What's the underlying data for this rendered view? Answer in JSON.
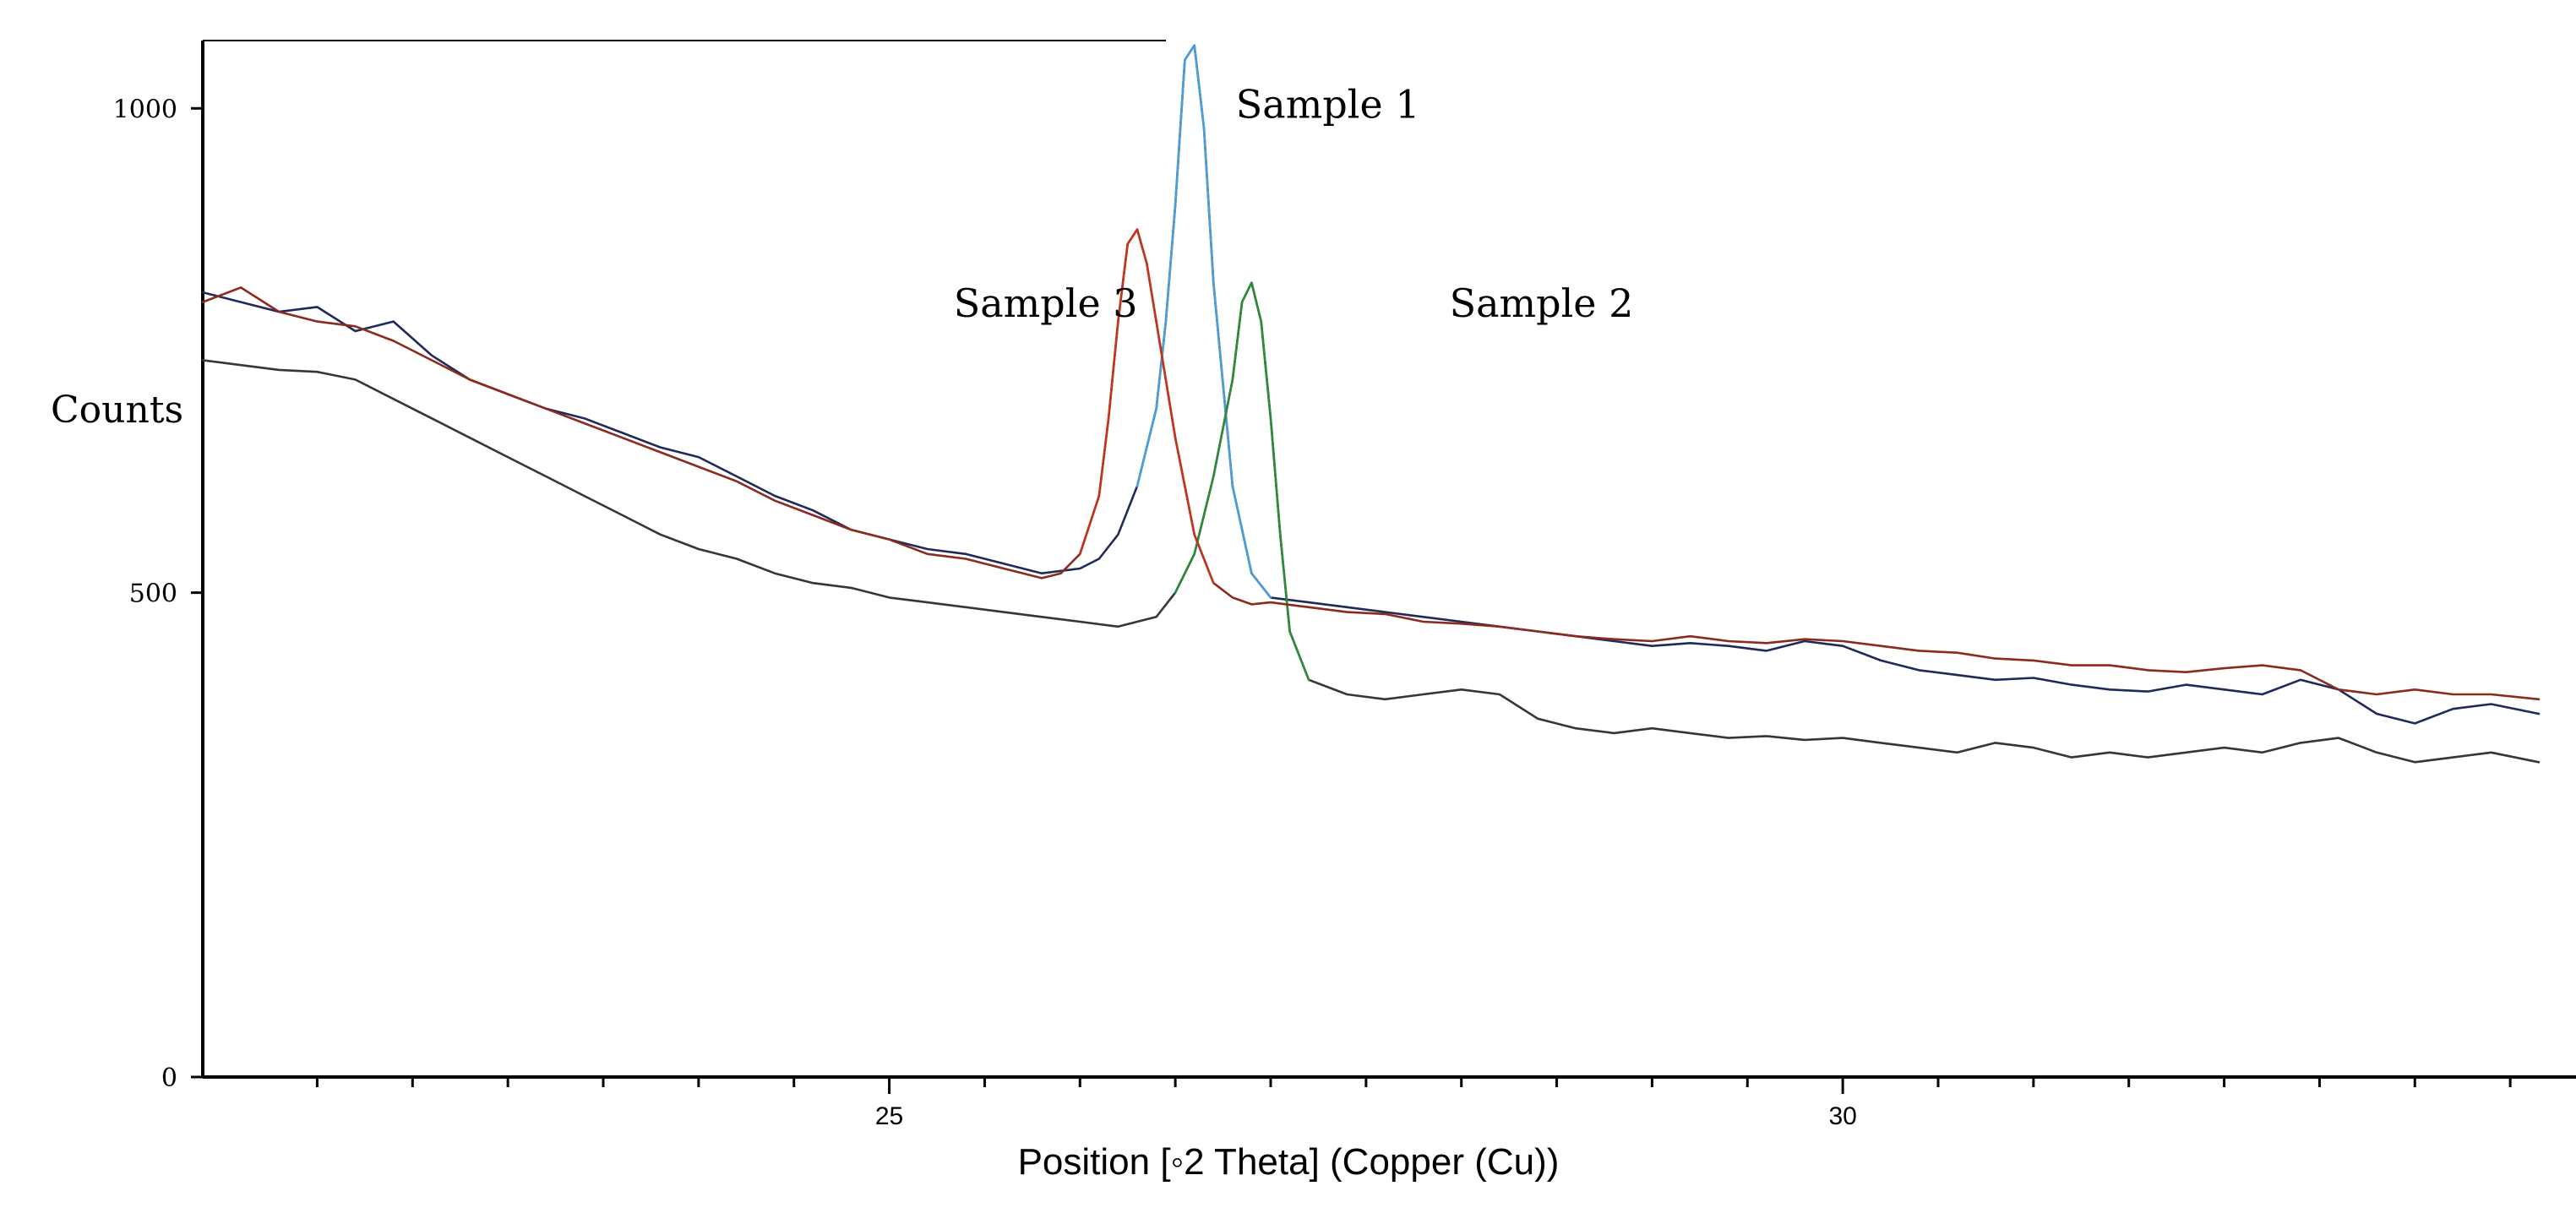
{
  "chart_data": {
    "type": "line",
    "title": "",
    "xlabel": "Position [◦2 Theta] (Copper (Cu))",
    "ylabel": "Counts",
    "xlim": [
      21.4,
      33.65
    ],
    "ylim": [
      0,
      1070
    ],
    "x_ticks": [
      25,
      30
    ],
    "x_minor_ticks": [
      22,
      22.5,
      23,
      23.5,
      24,
      24.5,
      25.5,
      26,
      26.5,
      27,
      27.5,
      28,
      28.5,
      29,
      29.5,
      30.5,
      31,
      31.5,
      32,
      32.5,
      33,
      33.5
    ],
    "y_ticks": [
      0,
      500,
      1000
    ],
    "grid": false,
    "legend": "none",
    "series": [
      {
        "name": "Sample 1",
        "color": "#1f2a5a",
        "peak_color": "#4a9fd8",
        "x": [
          21.4,
          21.6,
          21.8,
          22.0,
          22.2,
          22.4,
          22.6,
          22.8,
          23.0,
          23.2,
          23.4,
          23.6,
          23.8,
          24.0,
          24.2,
          24.4,
          24.6,
          24.8,
          25.0,
          25.2,
          25.4,
          25.6,
          25.8,
          26.0,
          26.1,
          26.2,
          26.3,
          26.4,
          26.45,
          26.5,
          26.55,
          26.6,
          26.65,
          26.7,
          26.8,
          26.9,
          27.0,
          27.2,
          27.4,
          27.6,
          27.8,
          28.0,
          28.2,
          28.4,
          28.6,
          28.8,
          29.0,
          29.2,
          29.4,
          29.6,
          29.8,
          30.0,
          30.2,
          30.4,
          30.6,
          30.8,
          31.0,
          31.2,
          31.4,
          31.6,
          31.8,
          32.0,
          32.2,
          32.4,
          32.6,
          32.8,
          33.0,
          33.2,
          33.4,
          33.65
        ],
        "y": [
          810,
          800,
          790,
          795,
          770,
          780,
          745,
          720,
          705,
          690,
          680,
          665,
          650,
          640,
          620,
          600,
          585,
          565,
          555,
          545,
          540,
          530,
          520,
          525,
          535,
          560,
          610,
          690,
          780,
          900,
          1050,
          1065,
          980,
          820,
          610,
          520,
          495,
          490,
          485,
          480,
          475,
          470,
          465,
          460,
          455,
          450,
          445,
          448,
          445,
          440,
          450,
          445,
          430,
          420,
          415,
          410,
          412,
          405,
          400,
          398,
          405,
          400,
          395,
          410,
          400,
          375,
          365,
          380,
          385,
          375
        ]
      },
      {
        "name": "Sample 2",
        "color": "#2f3a30",
        "peak_color": "#2d8a3a",
        "x": [
          21.4,
          21.6,
          21.8,
          22.0,
          22.2,
          22.4,
          22.6,
          22.8,
          23.0,
          23.2,
          23.4,
          23.6,
          23.8,
          24.0,
          24.2,
          24.4,
          24.6,
          24.8,
          25.0,
          25.2,
          25.4,
          25.6,
          25.8,
          26.0,
          26.2,
          26.4,
          26.5,
          26.6,
          26.7,
          26.8,
          26.85,
          26.9,
          26.95,
          27.0,
          27.05,
          27.1,
          27.2,
          27.4,
          27.6,
          27.8,
          28.0,
          28.2,
          28.4,
          28.6,
          28.8,
          29.0,
          29.2,
          29.4,
          29.6,
          29.8,
          30.0,
          30.2,
          30.4,
          30.6,
          30.8,
          31.0,
          31.2,
          31.4,
          31.6,
          31.8,
          32.0,
          32.2,
          32.4,
          32.6,
          32.8,
          33.0,
          33.2,
          33.4,
          33.65
        ],
        "y": [
          740,
          735,
          730,
          728,
          720,
          700,
          680,
          660,
          640,
          620,
          600,
          580,
          560,
          545,
          535,
          520,
          510,
          505,
          495,
          490,
          485,
          480,
          475,
          470,
          465,
          475,
          500,
          540,
          620,
          720,
          800,
          820,
          780,
          680,
          560,
          460,
          410,
          395,
          390,
          395,
          400,
          395,
          370,
          360,
          355,
          360,
          355,
          350,
          352,
          348,
          350,
          345,
          340,
          335,
          345,
          340,
          330,
          335,
          330,
          335,
          340,
          335,
          345,
          350,
          335,
          325,
          330,
          335,
          325
        ]
      },
      {
        "name": "Sample 3",
        "color": "#8b2a1e",
        "peak_color": "#c1351f",
        "x": [
          21.4,
          21.6,
          21.8,
          22.0,
          22.2,
          22.4,
          22.6,
          22.8,
          23.0,
          23.2,
          23.4,
          23.6,
          23.8,
          24.0,
          24.2,
          24.4,
          24.6,
          24.8,
          25.0,
          25.2,
          25.4,
          25.6,
          25.8,
          25.9,
          26.0,
          26.1,
          26.15,
          26.2,
          26.25,
          26.3,
          26.35,
          26.4,
          26.5,
          26.6,
          26.7,
          26.8,
          26.9,
          27.0,
          27.2,
          27.4,
          27.6,
          27.8,
          28.0,
          28.2,
          28.4,
          28.6,
          28.8,
          29.0,
          29.2,
          29.4,
          29.6,
          29.8,
          30.0,
          30.2,
          30.4,
          30.6,
          30.8,
          31.0,
          31.2,
          31.4,
          31.6,
          31.8,
          32.0,
          32.2,
          32.4,
          32.6,
          32.8,
          33.0,
          33.2,
          33.4,
          33.65
        ],
        "y": [
          800,
          815,
          790,
          780,
          775,
          760,
          740,
          720,
          705,
          690,
          675,
          660,
          645,
          630,
          615,
          595,
          580,
          565,
          555,
          540,
          535,
          525,
          515,
          520,
          540,
          600,
          680,
          780,
          860,
          875,
          840,
          780,
          660,
          560,
          510,
          495,
          488,
          490,
          485,
          480,
          478,
          470,
          468,
          465,
          460,
          455,
          452,
          450,
          455,
          450,
          448,
          452,
          450,
          445,
          440,
          438,
          432,
          430,
          425,
          425,
          420,
          418,
          422,
          425,
          420,
          400,
          395,
          400,
          395,
          395,
          390
        ]
      }
    ],
    "annotations": [
      {
        "text": "Sample 1",
        "x": 27.3,
        "y": 990
      },
      {
        "text": "Sample 3",
        "x": 25.82,
        "y": 785
      },
      {
        "text": "Sample 2",
        "x": 28.42,
        "y": 785
      }
    ]
  }
}
